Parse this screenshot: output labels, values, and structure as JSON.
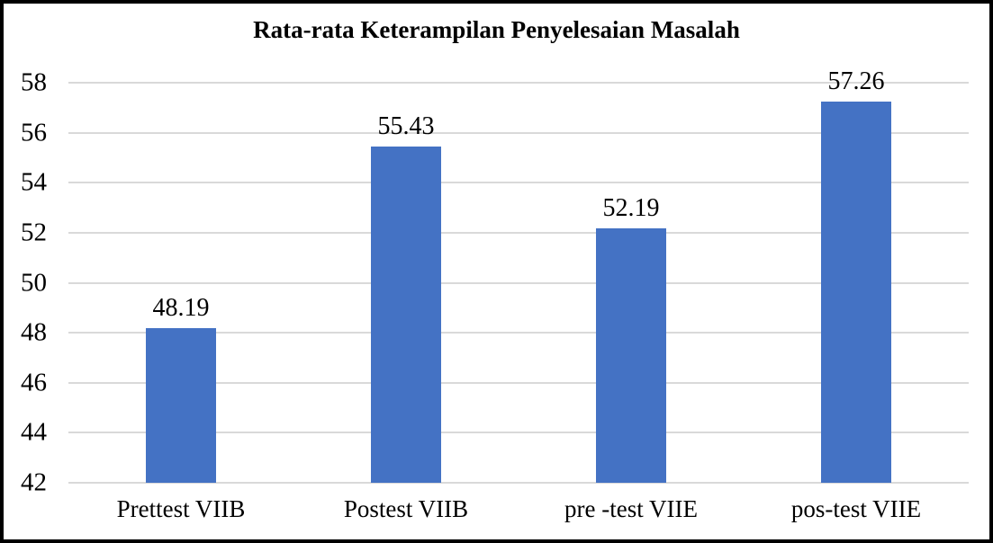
{
  "window": {
    "title": "Rata-rata Keterampilan Penyelesaian Masalah"
  },
  "colors": {
    "bar_fill": "#4472C4",
    "gridline": "#D9D9D9",
    "text": "#000000",
    "frame_border": "#000000",
    "background": "#FFFFFF"
  },
  "chart_data": {
    "type": "bar",
    "title": "Rata-rata Keterampilan Penyelesaian Masalah",
    "categories": [
      "Prettest VIIB",
      "Postest VIIB",
      "pre -test VIIE",
      "pos-test VIIE"
    ],
    "values": [
      48.19,
      55.43,
      52.19,
      57.26
    ],
    "value_labels": [
      "48.19",
      "55.43",
      "52.19",
      "57.26"
    ],
    "xlabel": "",
    "ylabel": "",
    "ylim": [
      42,
      58
    ],
    "yticks": [
      42,
      44,
      46,
      48,
      50,
      52,
      54,
      56,
      58
    ],
    "ytick_step": 2,
    "grid": true,
    "legend_position": "none",
    "bar_color": "#4472C4"
  }
}
